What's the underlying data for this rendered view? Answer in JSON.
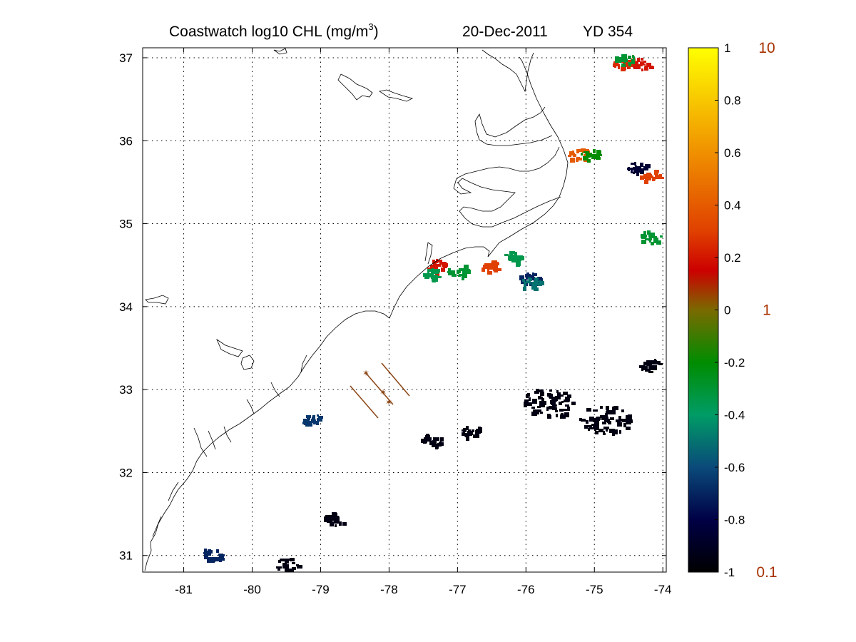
{
  "title": {
    "product": "Coastwatch  log10  CHL (mg/m",
    "superscript": "3",
    "close": ")",
    "date": "20-Dec-2011",
    "yearday": "YD 354"
  },
  "map": {
    "lon_range": [
      -81.6,
      -73.95
    ],
    "lat_range": [
      30.8,
      37.12
    ],
    "lon_ticks": [
      -81,
      -80,
      -79,
      -78,
      -77,
      -76,
      -75,
      -74
    ],
    "lat_ticks": [
      31,
      32,
      33,
      34,
      35,
      36,
      37
    ],
    "lon_tick_labels": [
      "-81",
      "-80",
      "-79",
      "-78",
      "-77",
      "-76",
      "-75",
      "-74"
    ],
    "lat_tick_labels": [
      "31",
      "32",
      "33",
      "34",
      "35",
      "36",
      "37"
    ],
    "grid": "dotted",
    "coastline_color": "#000000",
    "track_color": "#8B4513"
  },
  "colorbar": {
    "ticks": [
      1,
      0.8,
      0.6,
      0.4,
      0.2,
      0,
      -0.2,
      -0.4,
      -0.6,
      -0.8,
      -1
    ],
    "tick_labels": [
      "1",
      "0.8",
      "0.6",
      "0.4",
      "0.2",
      "0",
      "-0.2",
      "-0.4",
      "-0.6",
      "-0.8",
      "-1"
    ],
    "range": [
      -1,
      1
    ],
    "linear_labels": [
      {
        "value": 1,
        "label": "10"
      },
      {
        "value": 0,
        "label": "1"
      },
      {
        "value": -1,
        "label": "0.1"
      }
    ],
    "linear_label_color": "#A83200",
    "gradient_stops": [
      {
        "value": 1.0,
        "color": "#FFFF00"
      },
      {
        "value": 0.6,
        "color": "#F09000"
      },
      {
        "value": 0.3,
        "color": "#E04000"
      },
      {
        "value": 0.15,
        "color": "#CC0000"
      },
      {
        "value": 0.0,
        "color": "#7A6A00"
      },
      {
        "value": -0.2,
        "color": "#008C00"
      },
      {
        "value": -0.4,
        "color": "#009C66"
      },
      {
        "value": -0.6,
        "color": "#0A4A7A"
      },
      {
        "value": -0.8,
        "color": "#000046"
      },
      {
        "value": -1.0,
        "color": "#000000"
      }
    ]
  },
  "chl_patches": [
    {
      "lon": -74.6,
      "lat": 36.96,
      "value": 0.25
    },
    {
      "lon": -74.3,
      "lat": 36.94,
      "value": 0.2
    },
    {
      "lon": -74.55,
      "lat": 37.0,
      "value": -0.3
    },
    {
      "lon": -75.25,
      "lat": 35.85,
      "value": 0.4
    },
    {
      "lon": -75.05,
      "lat": 35.84,
      "value": -0.2
    },
    {
      "lon": -74.4,
      "lat": 35.7,
      "value": -0.85
    },
    {
      "lon": -74.2,
      "lat": 35.58,
      "value": 0.3
    },
    {
      "lon": -74.2,
      "lat": 34.85,
      "value": -0.3
    },
    {
      "lon": -77.3,
      "lat": 34.5,
      "value": 0.2
    },
    {
      "lon": -77.35,
      "lat": 34.4,
      "value": -0.35
    },
    {
      "lon": -77.0,
      "lat": 34.45,
      "value": -0.3
    },
    {
      "lon": -76.55,
      "lat": 34.5,
      "value": 0.3
    },
    {
      "lon": -76.2,
      "lat": 34.6,
      "value": -0.35
    },
    {
      "lon": -75.95,
      "lat": 34.35,
      "value": -0.7
    },
    {
      "lon": -75.95,
      "lat": 34.3,
      "value": -0.5
    },
    {
      "lon": -79.15,
      "lat": 32.65,
      "value": -0.65
    },
    {
      "lon": -75.7,
      "lat": 32.85,
      "value": -0.95
    },
    {
      "lon": -74.85,
      "lat": 32.65,
      "value": -0.95
    },
    {
      "lon": -74.2,
      "lat": 33.3,
      "value": -0.95
    },
    {
      "lon": -79.5,
      "lat": 30.9,
      "value": -0.95
    },
    {
      "lon": -80.6,
      "lat": 31.02,
      "value": -0.7
    },
    {
      "lon": -78.8,
      "lat": 31.45,
      "value": -0.95
    },
    {
      "lon": -76.8,
      "lat": 32.5,
      "value": -0.95
    },
    {
      "lon": -77.4,
      "lat": 32.4,
      "value": -0.95
    }
  ]
}
